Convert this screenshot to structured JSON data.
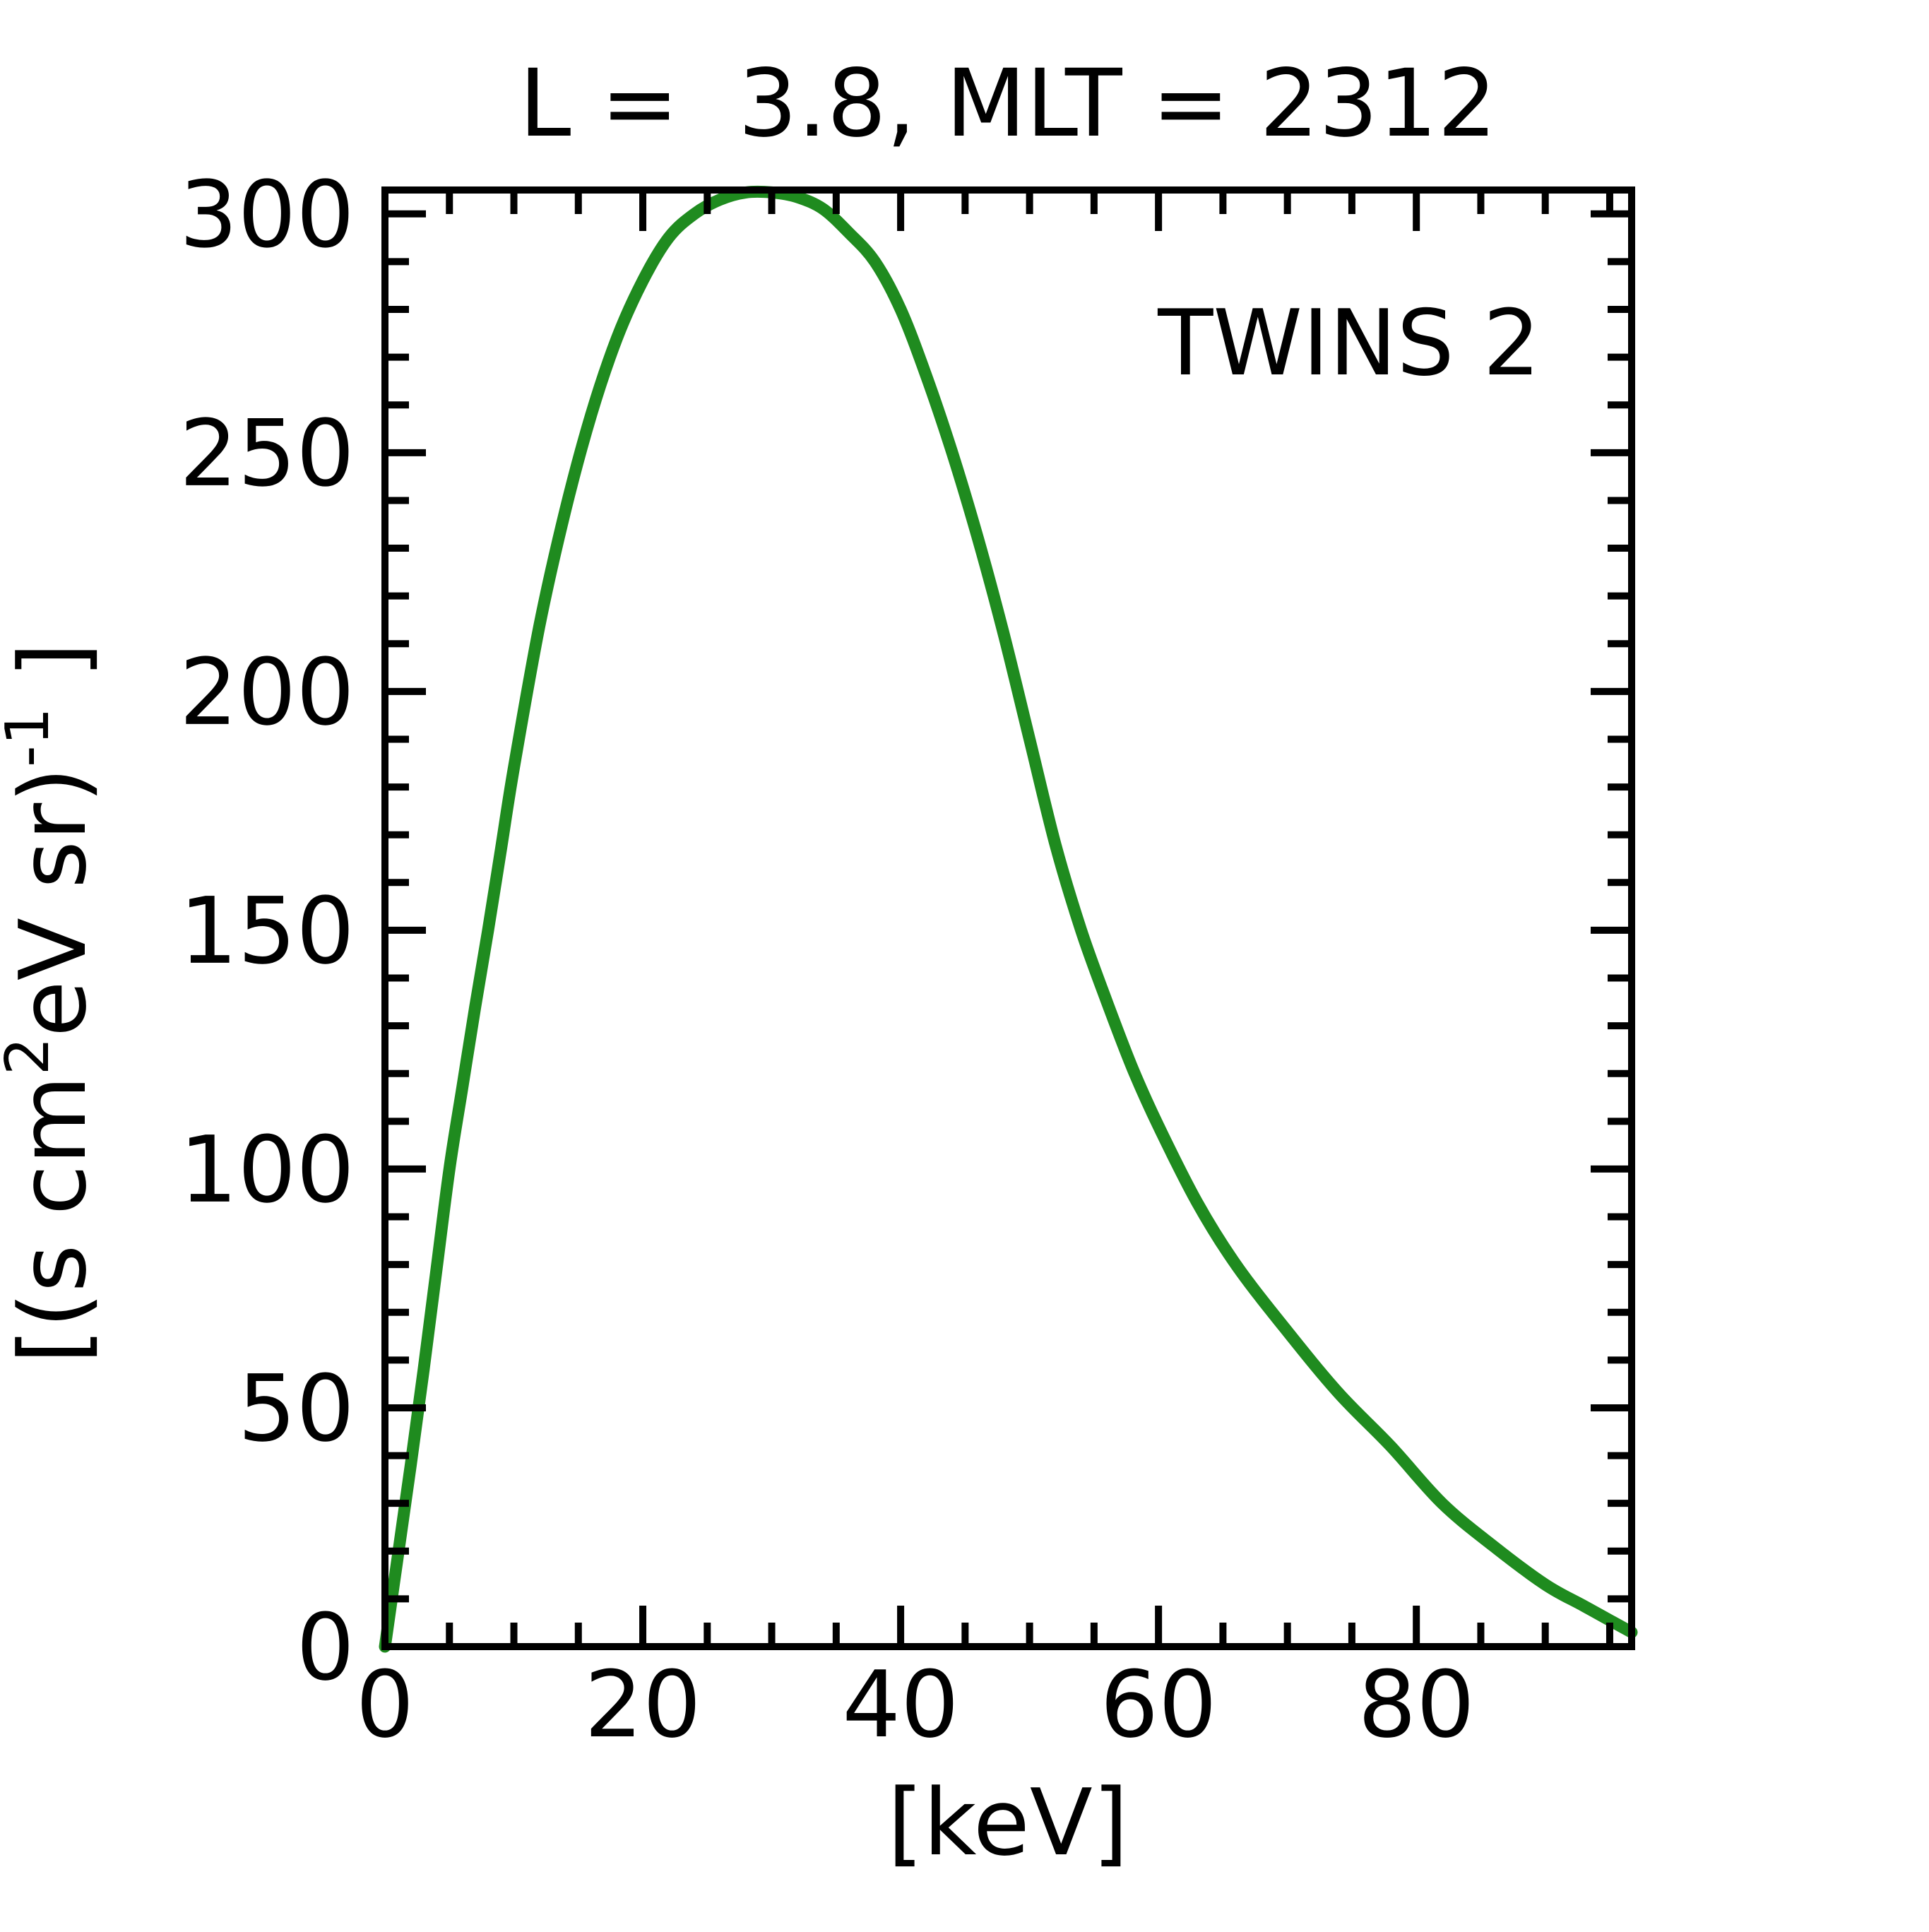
{
  "title": "L =  3.8, MLT = 2312",
  "legend": {
    "label": "TWINS 2",
    "color": "#1f8b1f"
  },
  "colors": {
    "background": "#ffffff",
    "axis": "#000000",
    "text": "#000000",
    "series": "#1f8b1f"
  },
  "chart_data": {
    "type": "line",
    "title": "L =  3.8, MLT = 2312",
    "xlabel": "[keV]",
    "ylabel_plain": "[(s cm2 eV sr)-1 ]",
    "ylabel_parts": [
      {
        "t": "[(s cm",
        "sup": false
      },
      {
        "t": "2",
        "sup": true
      },
      {
        "t": "eV sr)",
        "sup": false
      },
      {
        "t": "-1",
        "sup": true
      },
      {
        "t": " ]",
        "sup": false
      }
    ],
    "xlim": [
      0,
      96.7
    ],
    "ylim": [
      0,
      305
    ],
    "x_major_ticks": [
      0,
      20,
      40,
      60,
      80
    ],
    "x_major_labels": [
      "0",
      "20",
      "40",
      "60",
      "80"
    ],
    "x_minor_step": 5,
    "y_major_ticks": [
      0,
      50,
      100,
      150,
      200,
      250,
      300
    ],
    "y_major_labels": [
      "0",
      "50",
      "100",
      "150",
      "200",
      "250",
      "300"
    ],
    "y_minor_step": 10,
    "grid": false,
    "legend_position": "upper right inside",
    "series": [
      {
        "name": "TWINS 2",
        "color": "#1f8b1f",
        "x": [
          0,
          1,
          2,
          3,
          4,
          5,
          6,
          7,
          8,
          9,
          10,
          12,
          14,
          16,
          18,
          20,
          22,
          24,
          26,
          28,
          30,
          32,
          34,
          36,
          38,
          40,
          42,
          44,
          46,
          48,
          50,
          52,
          54,
          56,
          58,
          60,
          63,
          66,
          70,
          74,
          78,
          82,
          86,
          90,
          93,
          96.7
        ],
        "y": [
          0,
          19,
          38,
          58,
          79,
          100,
          117,
          134,
          150,
          167,
          184,
          214,
          238,
          258,
          274,
          286,
          295,
          300,
          303,
          304.5,
          304.5,
          303.5,
          301,
          296,
          290,
          280,
          266,
          250,
          232,
          212,
          190,
          168,
          150,
          135,
          121,
          109,
          93,
          80,
          66,
          53,
          42,
          30,
          21,
          13,
          8.5,
          3
        ]
      }
    ]
  }
}
